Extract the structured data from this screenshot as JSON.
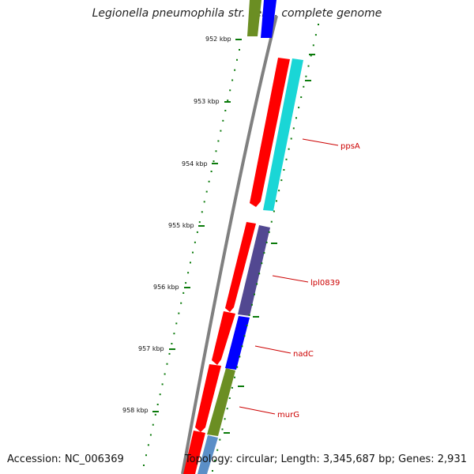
{
  "title": "Legionella pneumophila str. Lens, complete genome",
  "accession": "Accession: NC_006369",
  "topology": "Topology: circular; Length: 3,345,687 bp; Genes: 2,931",
  "colors": {
    "backbone": "#808080",
    "tick": "#0a7a0a",
    "label": "#cc0000",
    "forward_gene": "#ff0000",
    "cyan": "#1ad6d6",
    "purple": "#524891",
    "blue": "#0000ff",
    "olive": "#6b8e23",
    "steel": "#5b8fc7"
  },
  "ticks": [
    {
      "label": "952 kbp"
    },
    {
      "label": "953 kbp"
    },
    {
      "label": "954 kbp"
    },
    {
      "label": "955 kbp"
    },
    {
      "label": "956 kbp"
    },
    {
      "label": "957 kbp"
    },
    {
      "label": "958 kbp"
    }
  ],
  "genes": [
    {
      "label": "ppsA"
    },
    {
      "label": "lpl0839"
    },
    {
      "label": "nadC"
    },
    {
      "label": "murG"
    }
  ]
}
